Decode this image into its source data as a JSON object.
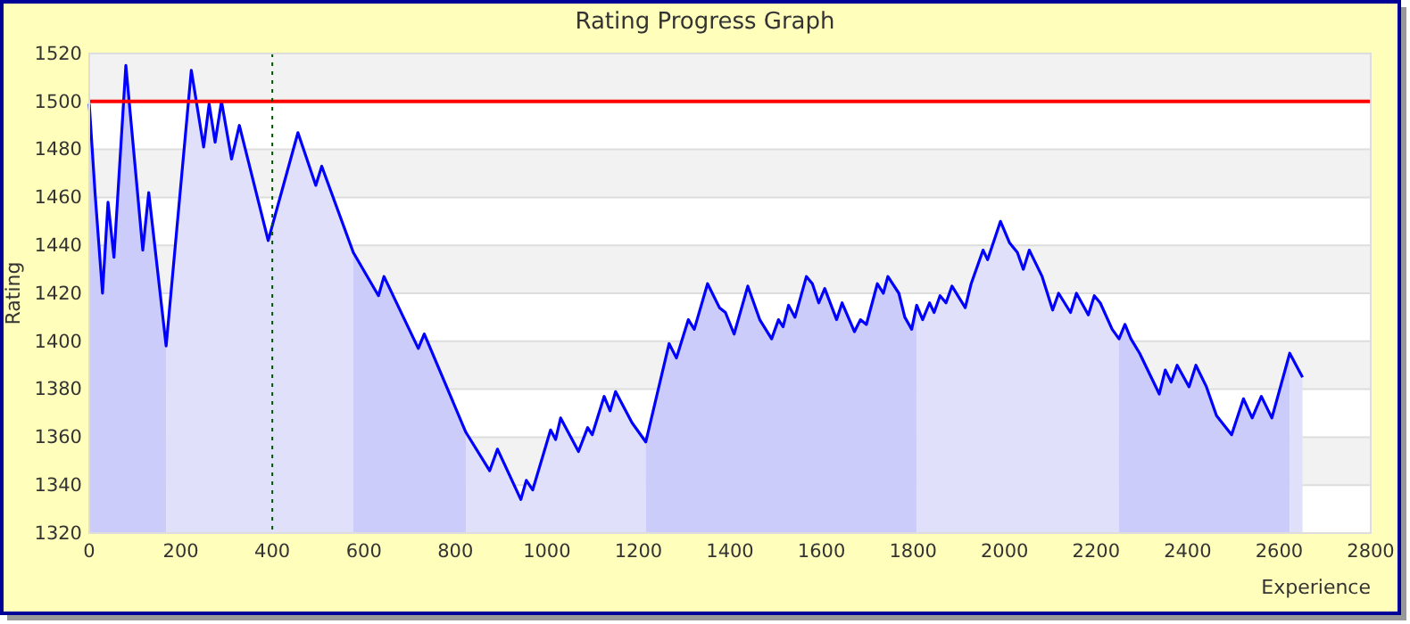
{
  "chart_data": {
    "type": "area",
    "title": "Rating Progress Graph",
    "xlabel": "Experience",
    "ylabel": "Rating",
    "xlim": [
      0,
      2800
    ],
    "xticks": [
      0,
      200,
      400,
      600,
      800,
      1000,
      1200,
      1400,
      1600,
      1800,
      2000,
      2200,
      2400,
      2600,
      2800
    ],
    "ylim": [
      1320,
      1520
    ],
    "yticks": [
      1320,
      1340,
      1360,
      1380,
      1400,
      1420,
      1440,
      1460,
      1480,
      1500,
      1520
    ],
    "grid": "y",
    "series": [
      {
        "color": "#ccccfa",
        "x": [
          0,
          13,
          29,
          41,
          54,
          80,
          117,
          130,
          168
        ],
        "values": [
          1499,
          1461,
          1420,
          1458,
          1435,
          1515,
          1438,
          1462,
          1398
        ]
      },
      {
        "color": "#e0e0fa",
        "x": [
          168,
          223,
          250,
          262,
          275,
          289,
          311,
          328,
          391,
          456,
          495,
          508,
          577
        ],
        "values": [
          1398,
          1513,
          1481,
          1499,
          1483,
          1500,
          1476,
          1490,
          1442,
          1487,
          1465,
          1473,
          1437
        ]
      },
      {
        "color": "#ccccfa",
        "x": [
          577,
          632,
          644,
          719,
          732,
          823
        ],
        "values": [
          1437,
          1419,
          1427,
          1397,
          1403,
          1362
        ]
      },
      {
        "color": "#e0e0fa",
        "x": [
          823,
          875,
          892,
          943,
          955,
          969,
          1008,
          1019,
          1030,
          1069,
          1089,
          1099,
          1125,
          1138,
          1150,
          1186,
          1216
        ],
        "values": [
          1362,
          1346,
          1355,
          1334,
          1342,
          1338,
          1363,
          1359,
          1368,
          1354,
          1364,
          1361,
          1377,
          1371,
          1379,
          1366,
          1358
        ]
      },
      {
        "color": "#ccccfa",
        "x": [
          1216,
          1267,
          1283,
          1309,
          1322,
          1351,
          1377,
          1390,
          1409,
          1439,
          1465,
          1491,
          1506,
          1516,
          1528,
          1542,
          1567,
          1580,
          1594,
          1607,
          1633,
          1645,
          1672,
          1685,
          1698,
          1722,
          1735,
          1745,
          1769,
          1782,
          1797,
          1808
        ],
        "values": [
          1358,
          1399,
          1393,
          1409,
          1405,
          1424,
          1414,
          1412,
          1403,
          1423,
          1409,
          1401,
          1409,
          1406,
          1415,
          1410,
          1427,
          1424,
          1416,
          1422,
          1409,
          1416,
          1404,
          1409,
          1407,
          1424,
          1420,
          1427,
          1420,
          1410,
          1405,
          1415
        ]
      },
      {
        "color": "#e0e0fa",
        "x": [
          1808,
          1821,
          1836,
          1846,
          1859,
          1872,
          1885,
          1914,
          1927,
          1953,
          1963,
          1991,
          2011,
          2028,
          2041,
          2054,
          2082,
          2105,
          2118,
          2144,
          2157,
          2183,
          2196,
          2209,
          2235,
          2250
        ],
        "values": [
          1415,
          1409,
          1416,
          1412,
          1419,
          1416,
          1423,
          1414,
          1424,
          1438,
          1434,
          1450,
          1441,
          1437,
          1430,
          1438,
          1427,
          1413,
          1420,
          1412,
          1420,
          1411,
          1419,
          1416,
          1405,
          1401
        ]
      },
      {
        "color": "#ccccfa",
        "x": [
          2250,
          2263,
          2276,
          2295,
          2338,
          2351,
          2364,
          2377,
          2403,
          2418,
          2441,
          2463,
          2496,
          2522,
          2541,
          2561,
          2584,
          2623
        ],
        "values": [
          1401,
          1407,
          1401,
          1395,
          1378,
          1388,
          1383,
          1390,
          1381,
          1390,
          1381,
          1369,
          1361,
          1376,
          1368,
          1377,
          1368,
          1395
        ]
      },
      {
        "color": "#e0e0fa",
        "x": [
          2623,
          2651
        ],
        "values": [
          1395,
          1385
        ]
      },
      {
        "type": "line",
        "color": "#0000ff",
        "x": [
          0,
          13,
          29,
          41,
          54,
          80,
          117,
          130,
          168,
          223,
          250,
          262,
          275,
          289,
          311,
          328,
          391,
          456,
          495,
          508,
          577,
          632,
          644,
          719,
          732,
          823,
          875,
          892,
          943,
          955,
          969,
          1008,
          1019,
          1030,
          1069,
          1089,
          1099,
          1125,
          1138,
          1150,
          1186,
          1216,
          1267,
          1283,
          1309,
          1322,
          1351,
          1377,
          1390,
          1409,
          1439,
          1465,
          1491,
          1506,
          1516,
          1528,
          1542,
          1567,
          1580,
          1594,
          1607,
          1633,
          1645,
          1672,
          1685,
          1698,
          1722,
          1735,
          1745,
          1769,
          1782,
          1797,
          1808,
          1821,
          1836,
          1846,
          1859,
          1872,
          1885,
          1914,
          1927,
          1953,
          1963,
          1991,
          2011,
          2028,
          2041,
          2054,
          2082,
          2105,
          2118,
          2144,
          2157,
          2183,
          2196,
          2209,
          2235,
          2250,
          2263,
          2276,
          2295,
          2338,
          2351,
          2364,
          2377,
          2403,
          2418,
          2441,
          2463,
          2496,
          2522,
          2541,
          2561,
          2584,
          2623,
          2651
        ],
        "values": [
          1499,
          1461,
          1420,
          1458,
          1435,
          1515,
          1438,
          1462,
          1398,
          1513,
          1481,
          1499,
          1483,
          1500,
          1476,
          1490,
          1442,
          1487,
          1465,
          1473,
          1437,
          1419,
          1427,
          1397,
          1403,
          1362,
          1346,
          1355,
          1334,
          1342,
          1338,
          1363,
          1359,
          1368,
          1354,
          1364,
          1361,
          1377,
          1371,
          1379,
          1366,
          1358,
          1399,
          1393,
          1409,
          1405,
          1424,
          1414,
          1412,
          1403,
          1423,
          1409,
          1401,
          1409,
          1406,
          1415,
          1410,
          1427,
          1424,
          1416,
          1422,
          1409,
          1416,
          1404,
          1409,
          1407,
          1424,
          1420,
          1427,
          1420,
          1410,
          1405,
          1415,
          1409,
          1416,
          1412,
          1419,
          1416,
          1423,
          1414,
          1424,
          1438,
          1434,
          1450,
          1441,
          1437,
          1430,
          1438,
          1427,
          1413,
          1420,
          1412,
          1420,
          1411,
          1419,
          1416,
          1405,
          1401,
          1407,
          1401,
          1395,
          1378,
          1388,
          1383,
          1390,
          1381,
          1390,
          1381,
          1369,
          1361,
          1376,
          1368,
          1377,
          1368,
          1395,
          1385
        ]
      }
    ],
    "ref_lines": [
      {
        "axis": "y",
        "value": 1500,
        "color": "#ff0000",
        "line_style": "solid"
      },
      {
        "axis": "x",
        "value": 400,
        "color": "#005500",
        "line_style": "dotted"
      }
    ]
  }
}
